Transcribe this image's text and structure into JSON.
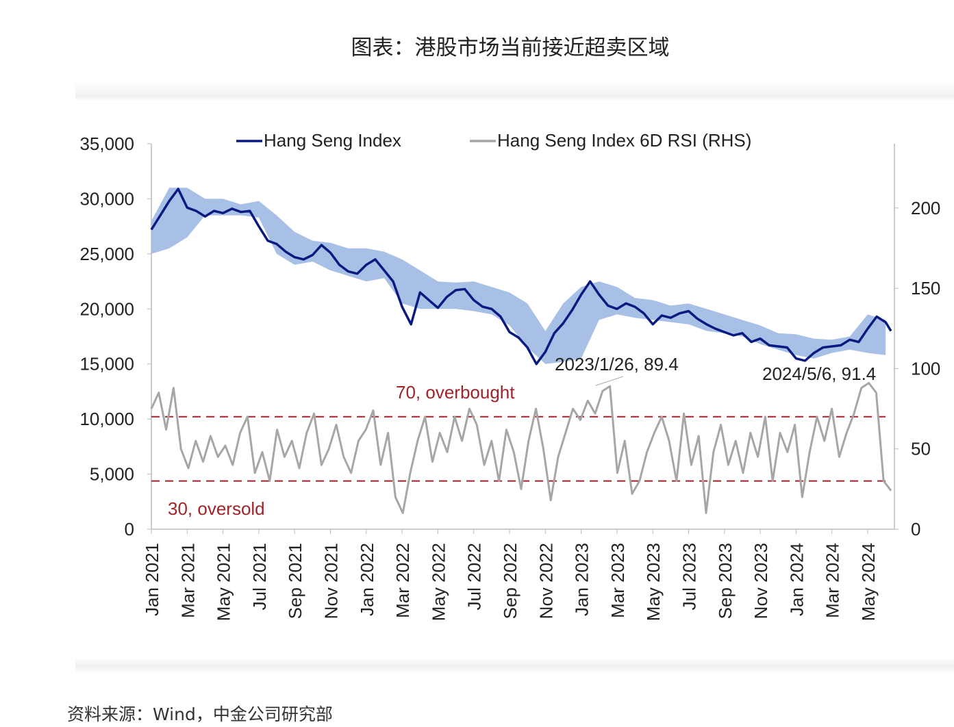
{
  "title": "图表：港股市场当前接近超卖区域",
  "source": "资料来源：Wind，中金公司研究部",
  "chart_data": {
    "type": "line",
    "legend": [
      "Hang Seng Index",
      "Hang Seng Index 6D RSI (RHS)"
    ],
    "legend_placement": "top",
    "colors": {
      "hsi": "#0a1a80",
      "band": "#a9c0e6",
      "rsi": "#a6a6a6",
      "threshold": "#a0232a",
      "annotation": "#222222"
    },
    "left_axis": {
      "min": 0,
      "max": 35000,
      "ticks": [
        "0",
        "5,000",
        "10,000",
        "15,000",
        "20,000",
        "25,000",
        "30,000",
        "35,000"
      ]
    },
    "right_axis": {
      "min": 0,
      "max": 240,
      "ticks": [
        "0",
        "50",
        "100",
        "150",
        "200"
      ]
    },
    "x_tick_labels": [
      "Jan 2021",
      "Mar 2021",
      "May 2021",
      "Jul 2021",
      "Sep 2021",
      "Nov 2021",
      "Jan 2022",
      "Mar 2022",
      "May 2022",
      "Jul 2022",
      "Sep 2022",
      "Nov 2022",
      "Jan 2023",
      "Mar 2023",
      "May 2023",
      "Jul 2023",
      "Sep 2023",
      "Nov 2023",
      "Jan 2024",
      "Mar 2024",
      "May 2024"
    ],
    "hsi_month_index": [
      0,
      0.5,
      1,
      1.5,
      2,
      2.5,
      3,
      3.5,
      4,
      4.5,
      5,
      5.5,
      6,
      6.5,
      7,
      7.5,
      8,
      8.5,
      9,
      9.5,
      10,
      10.5,
      11,
      11.5,
      12,
      12.5,
      13,
      13.5,
      14,
      14.5,
      15,
      15.5,
      16,
      16.5,
      17,
      17.5,
      18,
      18.5,
      19,
      19.5,
      20,
      20.5,
      21,
      21.5,
      22,
      22.5,
      23,
      23.5,
      24,
      24.5,
      25,
      25.5,
      26,
      26.5,
      27,
      27.5,
      28,
      28.5,
      29,
      29.5,
      30,
      30.5,
      31,
      31.5,
      32,
      32.5,
      33,
      33.5,
      34,
      34.5,
      35,
      35.5,
      36,
      36.5,
      37,
      37.5,
      38,
      38.5,
      39,
      39.5,
      40,
      40.5,
      41,
      41.3
    ],
    "hsi": [
      27200,
      28500,
      29800,
      30900,
      29200,
      28900,
      28400,
      28900,
      28700,
      29100,
      28800,
      28900,
      27500,
      26200,
      25900,
      25200,
      24700,
      24500,
      24900,
      25800,
      25100,
      24000,
      23400,
      23200,
      24000,
      24500,
      23500,
      22500,
      20200,
      18600,
      21500,
      20800,
      20100,
      21100,
      21700,
      21800,
      20800,
      20200,
      20000,
      19300,
      17900,
      17400,
      16500,
      15000,
      16100,
      17800,
      18700,
      19900,
      21300,
      22500,
      21300,
      20300,
      20000,
      20500,
      20200,
      19600,
      18600,
      19400,
      19200,
      19600,
      19800,
      19100,
      18600,
      18200,
      17900,
      17600,
      17800,
      17000,
      17300,
      16700,
      16600,
      16500,
      15500,
      15300,
      16000,
      16500,
      16600,
      16700,
      17200,
      17000,
      18200,
      19300,
      18800,
      18000
    ],
    "band_upper": [
      28000,
      31000,
      31000,
      30000,
      30000,
      29500,
      29800,
      28500,
      27000,
      26200,
      26000,
      25500,
      25500,
      25200,
      24500,
      23500,
      22500,
      22400,
      22500,
      22000,
      21500,
      20500,
      18000,
      20500,
      22000,
      22500,
      22000,
      21000,
      20800,
      20300,
      20500,
      20000,
      19500,
      19000,
      18500,
      17800,
      17700,
      17300,
      17200,
      17500,
      19500,
      19000
    ],
    "band_lower": [
      25000,
      25500,
      26500,
      28500,
      28500,
      28500,
      28300,
      25000,
      24000,
      24300,
      23500,
      23000,
      22500,
      22800,
      20500,
      20000,
      20000,
      20000,
      19800,
      19500,
      18500,
      16500,
      15000,
      15200,
      15500,
      19000,
      19500,
      19200,
      19000,
      18800,
      18600,
      18000,
      17800,
      17500,
      16800,
      16300,
      15800,
      15500,
      16000,
      16300,
      16000,
      15800
    ],
    "rsi": [
      75,
      85,
      62,
      88,
      50,
      38,
      55,
      42,
      58,
      45,
      52,
      40,
      60,
      70,
      35,
      48,
      30,
      62,
      45,
      55,
      38,
      60,
      72,
      40,
      50,
      65,
      45,
      35,
      55,
      62,
      74,
      40,
      60,
      20,
      10,
      35,
      55,
      70,
      42,
      60,
      48,
      70,
      55,
      75,
      65,
      40,
      55,
      30,
      62,
      48,
      25,
      55,
      75,
      50,
      18,
      45,
      60,
      75,
      68,
      80,
      72,
      86,
      89,
      35,
      55,
      22,
      30,
      48,
      60,
      70,
      55,
      30,
      72,
      40,
      58,
      10,
      48,
      65,
      40,
      55,
      35,
      60,
      45,
      70,
      30,
      60,
      48,
      65,
      20,
      48,
      70,
      55,
      75,
      45,
      60,
      72,
      88,
      91,
      85,
      30,
      24
    ],
    "thresholds": [
      {
        "value": 70,
        "label": "70, overbought"
      },
      {
        "value": 30,
        "label": "30, oversold"
      }
    ],
    "annotations": [
      {
        "label": "2023/1/26, 89.4",
        "month_index": 24.8,
        "value": 89.4
      },
      {
        "label": "2024/5/6, 91.4",
        "month_index": 40.2,
        "value": 91.4
      }
    ]
  }
}
